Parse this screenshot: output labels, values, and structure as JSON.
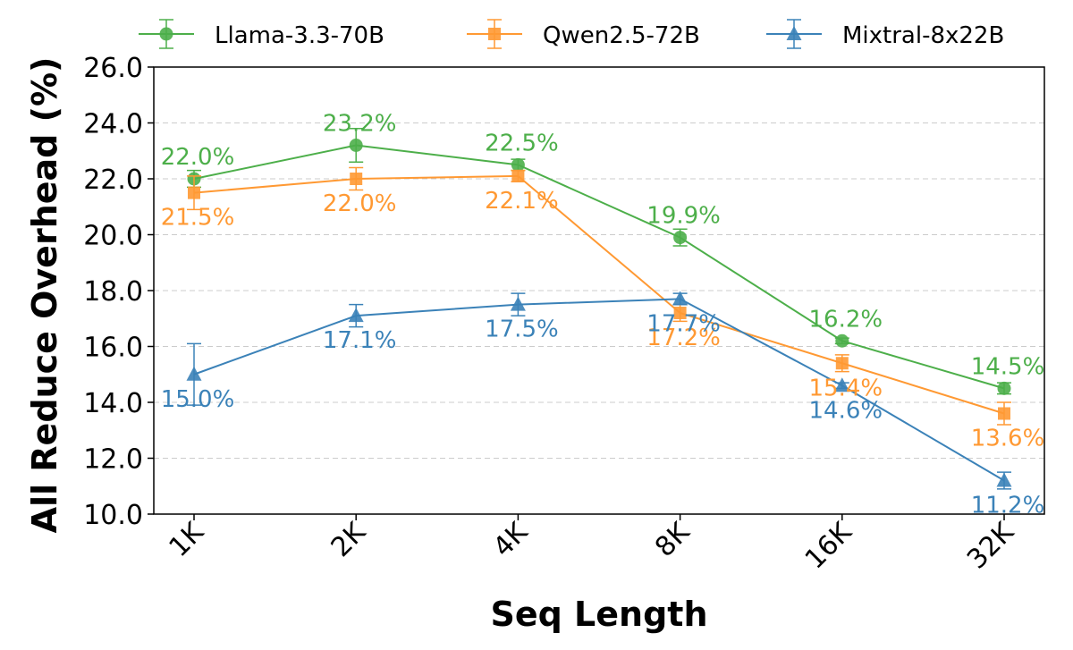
{
  "chart_data": {
    "type": "line",
    "title": "",
    "xlabel": "Seq Length",
    "ylabel": "All Reduce Overhead (%)",
    "categories": [
      "1K",
      "2K",
      "4K",
      "8K",
      "16K",
      "32K"
    ],
    "ylim": [
      10.0,
      26.0
    ],
    "yticks": [
      10.0,
      12.0,
      14.0,
      16.0,
      18.0,
      20.0,
      22.0,
      24.0,
      26.0
    ],
    "ytick_labels": [
      "10.0",
      "12.0",
      "14.0",
      "16.0",
      "18.0",
      "20.0",
      "22.0",
      "24.0",
      "26.0"
    ],
    "grid": "horizontal dashed",
    "legend_position": "top, outside plot",
    "series": [
      {
        "name": "Llama-3.3-70B",
        "color": "#4daf4a",
        "marker": "circle",
        "values": [
          22.0,
          23.2,
          22.5,
          19.9,
          16.2,
          14.5
        ],
        "errors": [
          0.3,
          0.6,
          0.2,
          0.3,
          0.1,
          0.2
        ],
        "labels": [
          "22.0%",
          "23.2%",
          "22.5%",
          "19.9%",
          "16.2%",
          "14.5%"
        ],
        "label_pos": [
          "above",
          "above",
          "above",
          "above",
          "above",
          "above"
        ]
      },
      {
        "name": "Qwen2.5-72B",
        "color": "#ff9933",
        "marker": "square",
        "values": [
          21.5,
          22.0,
          22.1,
          17.2,
          15.4,
          13.6
        ],
        "errors": [
          0.6,
          0.4,
          0.2,
          0.3,
          0.3,
          0.4
        ],
        "labels": [
          "21.5%",
          "22.0%",
          "22.1%",
          "17.2%",
          "15.4%",
          "13.6%"
        ],
        "label_pos": [
          "below",
          "below",
          "below",
          "below",
          "below",
          "below"
        ]
      },
      {
        "name": "Mixtral-8x22B",
        "color": "#3b82b8",
        "marker": "triangle",
        "values": [
          15.0,
          17.1,
          17.5,
          17.7,
          14.6,
          11.2
        ],
        "errors": [
          1.1,
          0.4,
          0.4,
          0.2,
          0.1,
          0.3
        ],
        "labels": [
          "15.0%",
          "17.1%",
          "17.5%",
          "17.7%",
          "14.6%",
          "11.2%"
        ],
        "label_pos": [
          "below",
          "below",
          "below",
          "below",
          "below",
          "below"
        ]
      }
    ]
  }
}
